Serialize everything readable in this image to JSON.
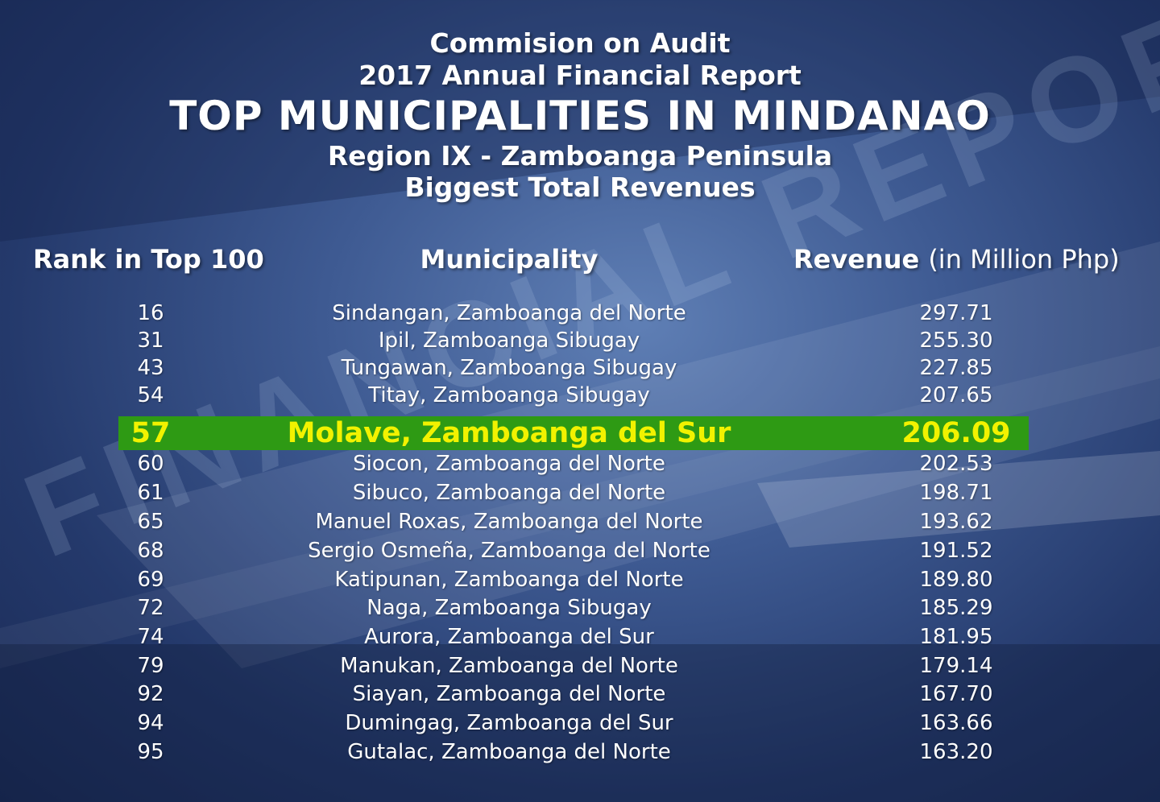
{
  "title": {
    "line1": "Commision on Audit",
    "line2": "2017 Annual Financial Report",
    "line3": "TOP MUNICIPALITIES IN MINDANAO",
    "line4": "Region IX - Zamboanga Peninsula",
    "line5": "Biggest Total Revenues"
  },
  "headers": {
    "rank": "Rank in Top 100",
    "municipality": "Municipality",
    "revenue": "Revenue",
    "revenue_unit": "(in Million Php)"
  },
  "background_text": "FINANCIAL REPORT",
  "colors": {
    "highlight_bg": "#2e9a14",
    "highlight_text": "#f2f200",
    "text": "#ffffff"
  },
  "chart_data": {
    "type": "table",
    "columns": [
      "Rank in Top 100",
      "Municipality",
      "Revenue (in Million Php)"
    ],
    "highlight_index": 4,
    "rows": [
      {
        "rank": "16",
        "municipality": "Sindangan, Zamboanga del Norte",
        "revenue": "297.71"
      },
      {
        "rank": "31",
        "municipality": "Ipil, Zamboanga Sibugay",
        "revenue": "255.30"
      },
      {
        "rank": "43",
        "municipality": "Tungawan, Zamboanga Sibugay",
        "revenue": "227.85"
      },
      {
        "rank": "54",
        "municipality": "Titay, Zamboanga Sibugay",
        "revenue": "207.65"
      },
      {
        "rank": "57",
        "municipality": "Molave, Zamboanga del Sur",
        "revenue": "206.09"
      },
      {
        "rank": "60",
        "municipality": "Siocon, Zamboanga del Norte",
        "revenue": "202.53"
      },
      {
        "rank": "61",
        "municipality": "Sibuco, Zamboanga del Norte",
        "revenue": "198.71"
      },
      {
        "rank": "65",
        "municipality": "Manuel Roxas, Zamboanga del Norte",
        "revenue": "193.62"
      },
      {
        "rank": "68",
        "municipality": "Sergio Osmeña, Zamboanga del Norte",
        "revenue": "191.52"
      },
      {
        "rank": "69",
        "municipality": "Katipunan, Zamboanga del Norte",
        "revenue": "189.80"
      },
      {
        "rank": "72",
        "municipality": "Naga, Zamboanga Sibugay",
        "revenue": "185.29"
      },
      {
        "rank": "74",
        "municipality": "Aurora, Zamboanga del Sur",
        "revenue": "181.95"
      },
      {
        "rank": "79",
        "municipality": "Manukan, Zamboanga del Norte",
        "revenue": "179.14"
      },
      {
        "rank": "92",
        "municipality": "Siayan, Zamboanga del Norte",
        "revenue": "167.70"
      },
      {
        "rank": "94",
        "municipality": "Dumingag, Zamboanga del Sur",
        "revenue": "163.66"
      },
      {
        "rank": "95",
        "municipality": "Gutalac, Zamboanga del Norte",
        "revenue": "163.20"
      }
    ]
  }
}
